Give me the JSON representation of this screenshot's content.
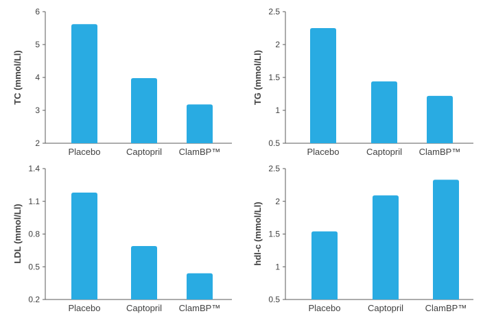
{
  "chart_data": [
    {
      "type": "bar",
      "ylabel": "TC (mmol/Ll)",
      "categories": [
        "Placebo",
        "Captopril",
        "ClamBP™"
      ],
      "values": [
        5.62,
        3.98,
        3.18
      ],
      "ylim": [
        2,
        6
      ],
      "yticks": [
        "2",
        "3",
        "4",
        "5",
        "6"
      ],
      "color": "#29abe2",
      "grid": false
    },
    {
      "type": "bar",
      "ylabel": "TG (mmol/Ll)",
      "categories": [
        "Placebo",
        "Captopril",
        "ClamBP™"
      ],
      "values": [
        2.25,
        1.44,
        1.22
      ],
      "ylim": [
        0.5,
        2.5
      ],
      "yticks": [
        "0.5",
        "1",
        "1.5",
        "2",
        "2.5"
      ],
      "color": "#29abe2",
      "grid": false
    },
    {
      "type": "bar",
      "ylabel": "LDL (mmol/Ll)",
      "categories": [
        "Placebo",
        "Captopril",
        "ClamBP™"
      ],
      "values": [
        1.18,
        0.69,
        0.44
      ],
      "ylim": [
        0.2,
        1.4
      ],
      "yticks": [
        "0.2",
        "0.5",
        "0.8",
        "1.1",
        "1.4"
      ],
      "color": "#29abe2",
      "grid": false
    },
    {
      "type": "bar",
      "ylabel": "hdl-c (mmol/Ll)",
      "categories": [
        "Placebo",
        "Captopril",
        "ClamBP™"
      ],
      "values": [
        1.54,
        2.09,
        2.33
      ],
      "ylim": [
        0.5,
        2.5
      ],
      "yticks": [
        "0.5",
        "1",
        "1.5",
        "2",
        "2.5"
      ],
      "color": "#29abe2",
      "grid": false
    }
  ]
}
